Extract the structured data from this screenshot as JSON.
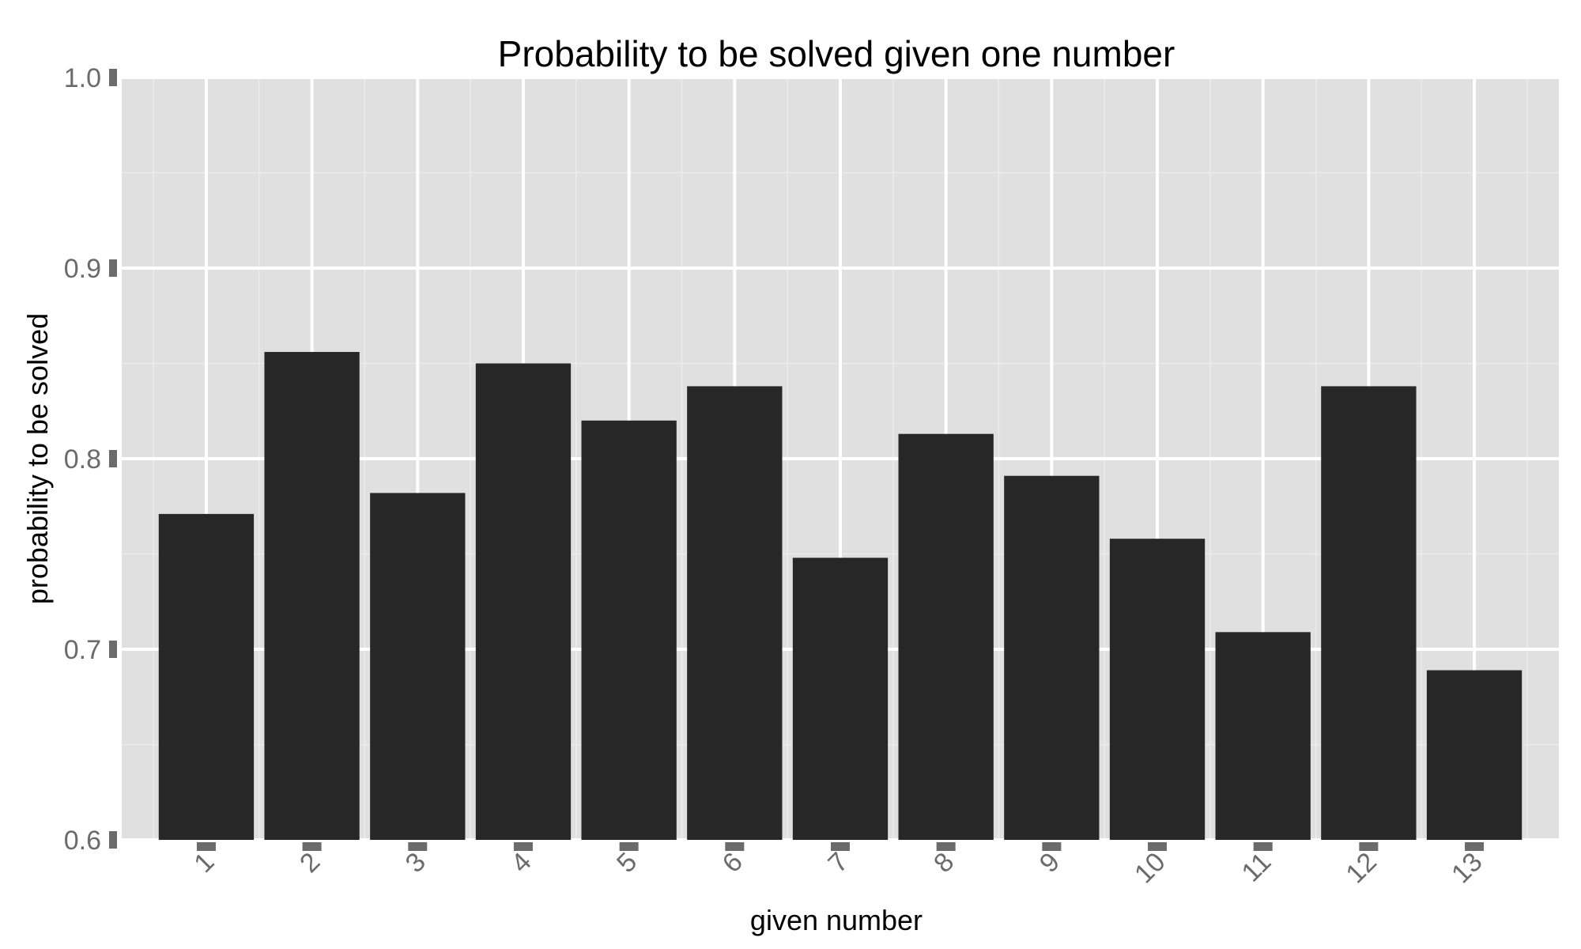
{
  "chart_data": {
    "type": "bar",
    "title": "Probability to be solved given one number",
    "xlabel": "given number",
    "ylabel": "probability to be solved",
    "categories": [
      "1",
      "2",
      "3",
      "4",
      "5",
      "6",
      "7",
      "8",
      "9",
      "10",
      "11",
      "12",
      "13"
    ],
    "values": [
      0.771,
      0.856,
      0.782,
      0.85,
      0.82,
      0.838,
      0.748,
      0.813,
      0.791,
      0.758,
      0.709,
      0.838,
      0.689
    ],
    "ylim": [
      0.6,
      1.0
    ],
    "yticks": [
      "0.6",
      "0.7",
      "0.8",
      "0.9",
      "1.0"
    ],
    "grid": true,
    "bar_color": "#272727",
    "panel_color": "#e0e0e0"
  }
}
